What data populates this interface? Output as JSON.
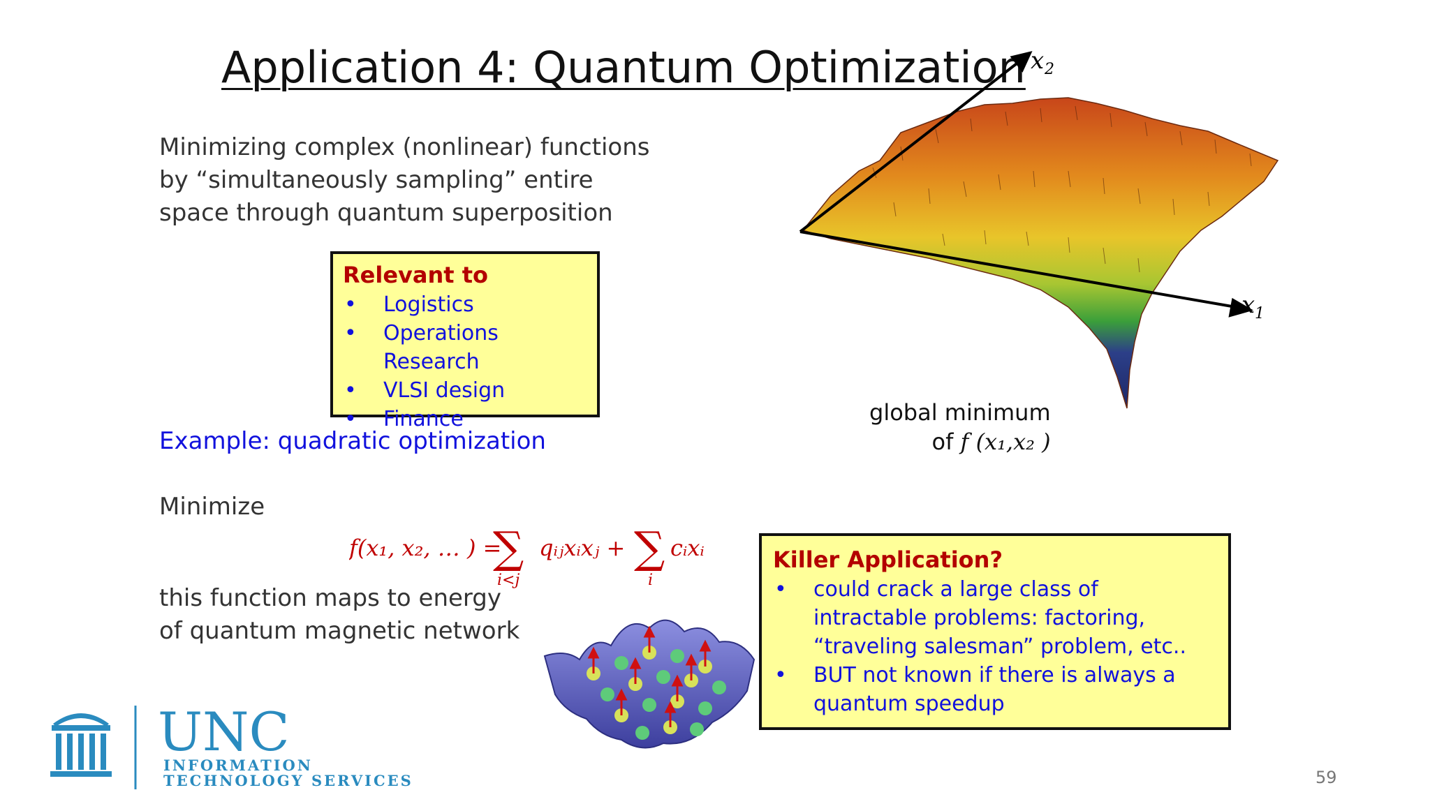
{
  "slide": {
    "title": "Application 4: Quantum Optimization",
    "intro": "Minimizing complex (nonlinear) functions by “simultaneously sampling” entire space through quantum superposition",
    "relevant_box": {
      "title": "Relevant to",
      "items": [
        "Logistics",
        "Operations Research",
        "VLSI design",
        "Finance"
      ]
    },
    "example": "Example: quadratic optimization",
    "minimize_label": "Minimize",
    "formula": {
      "lhs": "f(x₁, x₂, … ) =",
      "sum1_term": "qᵢⱼxᵢxⱼ +",
      "sum1_index": "i<j",
      "sum2_term": "cᵢxᵢ",
      "sum2_index": "i"
    },
    "maps_text": "this function maps to energy of quantum magnetic network",
    "killer_box": {
      "title": "Killer Application?",
      "items": [
        "could crack a large class of intractable problems: factoring, “traveling salesman” problem, etc..",
        "BUT not known if there is always a quantum speedup"
      ]
    },
    "landscape": {
      "axis_x1": "x",
      "axis_x1_sub": "1",
      "axis_x2": "x",
      "axis_x2_sub": "2",
      "global_min_line1": "global minimum",
      "global_min_of": "of",
      "global_min_func": "f (x₁,x₂ )"
    },
    "logo": {
      "name": "UNC",
      "line1": "INFORMATION",
      "line2": "TECHNOLOGY SERVICES",
      "color": "#2a8bbf"
    },
    "page_number": "59",
    "colors": {
      "box_fill": "#ffff99",
      "box_title": "#b30000",
      "link_blue": "#1111dd",
      "formula_red": "#c00000"
    }
  }
}
